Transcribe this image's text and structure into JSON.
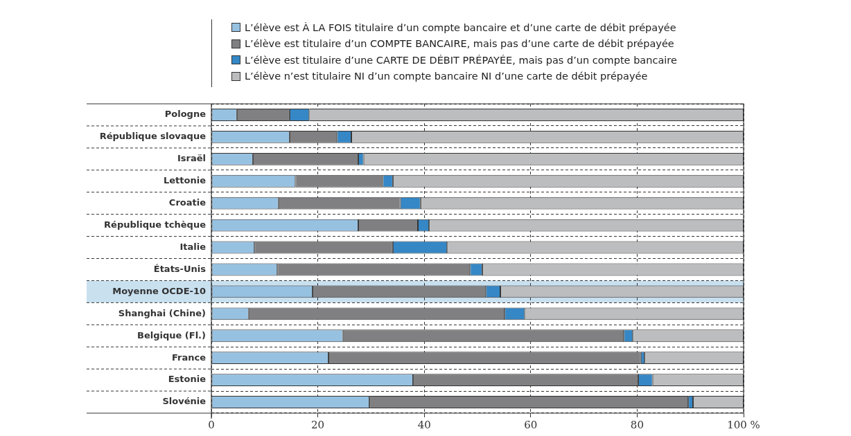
{
  "chart_data": {
    "type": "bar",
    "orientation": "horizontal",
    "stacked": true,
    "categories": [
      "Pologne",
      "République slovaque",
      "Israël",
      "Lettonie",
      "Croatie",
      "République tchèque",
      "Italie",
      "États-Unis",
      "Moyenne OCDE-10",
      "Shanghai (Chine)",
      "Belgique (Fl.)",
      "France",
      "Estonie",
      "Slovénie"
    ],
    "series": [
      {
        "name": "L’élève est À LA FOIS titulaire d’un compte bancaire et d’une carte de débit prépayée",
        "color": "#97c1e1",
        "values": [
          4.8,
          14.7,
          7.8,
          15.8,
          12.6,
          27.6,
          8.1,
          12.4,
          19.0,
          7.0,
          24.7,
          22.0,
          37.9,
          29.7
        ]
      },
      {
        "name": "L’élève est titulaire d’un COMPTE BANCAIRE, mais pas d’une carte de débit prépayée",
        "color": "#808083",
        "values": [
          9.9,
          8.9,
          19.8,
          16.4,
          22.9,
          11.2,
          26.0,
          36.2,
          32.6,
          48.1,
          52.8,
          58.7,
          42.3,
          59.9
        ]
      },
      {
        "name": "L’élève est titulaire d’une CARTE DE DÉBIT PRÉPAYÉE, mais pas d’un compte bancaire",
        "color": "#3587c6",
        "values": [
          3.7,
          2.7,
          1.0,
          1.9,
          3.8,
          2.1,
          10.2,
          2.3,
          2.7,
          3.8,
          1.7,
          0.7,
          2.7,
          0.9
        ]
      },
      {
        "name": "L’élève n’est titulaire NI d’un compte bancaire NI d’une carte de débit prépayée",
        "color": "#bcbdbf",
        "values": [
          81.6,
          73.7,
          71.4,
          65.9,
          60.7,
          59.1,
          55.7,
          49.1,
          45.7,
          41.1,
          20.8,
          18.6,
          17.1,
          9.5
        ]
      }
    ],
    "xlim": [
      0,
      100
    ],
    "xticks": [
      0,
      20,
      40,
      60,
      80,
      {
        "value": 100,
        "label": "100 %"
      }
    ],
    "bands": [
      {
        "axis": "y",
        "from": "Moyenne OCDE-10",
        "to": "Moyenne OCDE-10",
        "color": "#c9e0ef"
      }
    ],
    "grid": true,
    "legend": "top"
  }
}
